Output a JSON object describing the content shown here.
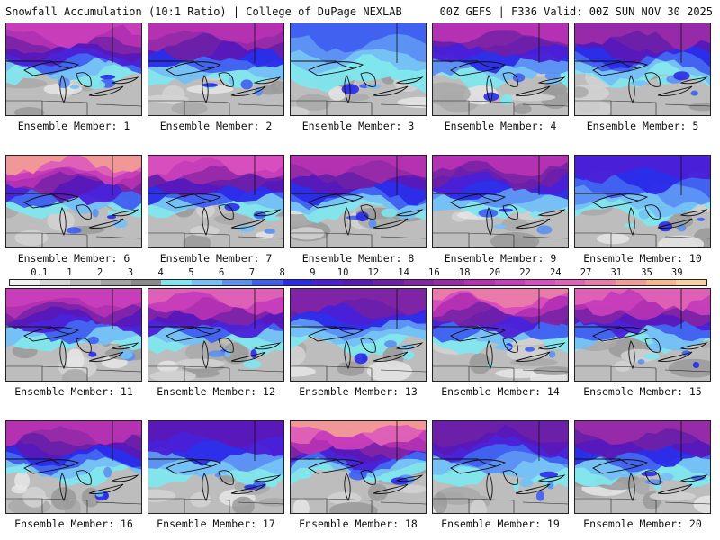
{
  "header": {
    "left": "Snowfall Accumulation (10:1 Ratio) | College of DuPage NEXLAB",
    "right": "00Z GEFS | F336 Valid: 00Z SUN NOV 30 2025"
  },
  "members": [
    {
      "label": "Ensemble Member: 1",
      "intensity": 0.75
    },
    {
      "label": "Ensemble Member: 2",
      "intensity": 0.7
    },
    {
      "label": "Ensemble Member: 3",
      "intensity": 0.25
    },
    {
      "label": "Ensemble Member: 4",
      "intensity": 0.65
    },
    {
      "label": "Ensemble Member: 5",
      "intensity": 0.6
    },
    {
      "label": "Ensemble Member: 6",
      "intensity": 0.95
    },
    {
      "label": "Ensemble Member: 7",
      "intensity": 0.8
    },
    {
      "label": "Ensemble Member: 8",
      "intensity": 0.7
    },
    {
      "label": "Ensemble Member: 9",
      "intensity": 0.65
    },
    {
      "label": "Ensemble Member: 10",
      "intensity": 0.4
    },
    {
      "label": "Ensemble Member: 11",
      "intensity": 0.75
    },
    {
      "label": "Ensemble Member: 12",
      "intensity": 0.85
    },
    {
      "label": "Ensemble Member: 13",
      "intensity": 0.55
    },
    {
      "label": "Ensemble Member: 14",
      "intensity": 0.9
    },
    {
      "label": "Ensemble Member: 15",
      "intensity": 0.85
    },
    {
      "label": "Ensemble Member: 16",
      "intensity": 0.7
    },
    {
      "label": "Ensemble Member: 17",
      "intensity": 0.45
    },
    {
      "label": "Ensemble Member: 18",
      "intensity": 0.95
    },
    {
      "label": "Ensemble Member: 19",
      "intensity": 0.5
    },
    {
      "label": "Ensemble Member: 20",
      "intensity": 0.6
    }
  ],
  "colorbar": {
    "ticks": [
      "0.1",
      "1",
      "2",
      "3",
      "4",
      "5",
      "6",
      "7",
      "8",
      "9",
      "10",
      "12",
      "14",
      "16",
      "18",
      "20",
      "22",
      "24",
      "27",
      "31",
      "35",
      "39"
    ],
    "colors": [
      "#f2f2f2",
      "#d6d6d6",
      "#bdbdbd",
      "#a3a3a3",
      "#8a8a8a",
      "#7fe6ee",
      "#74bff6",
      "#5b8ff2",
      "#3f5ff0",
      "#2a2ae8",
      "#4b1fd6",
      "#5a18b8",
      "#6e20a8",
      "#8225a6",
      "#9a2ba8",
      "#b533b2",
      "#c93fbb",
      "#d94fbf",
      "#e062b6",
      "#ea7ca8",
      "#f29a96",
      "#f6b68e",
      "#f8cfa0"
    ]
  }
}
